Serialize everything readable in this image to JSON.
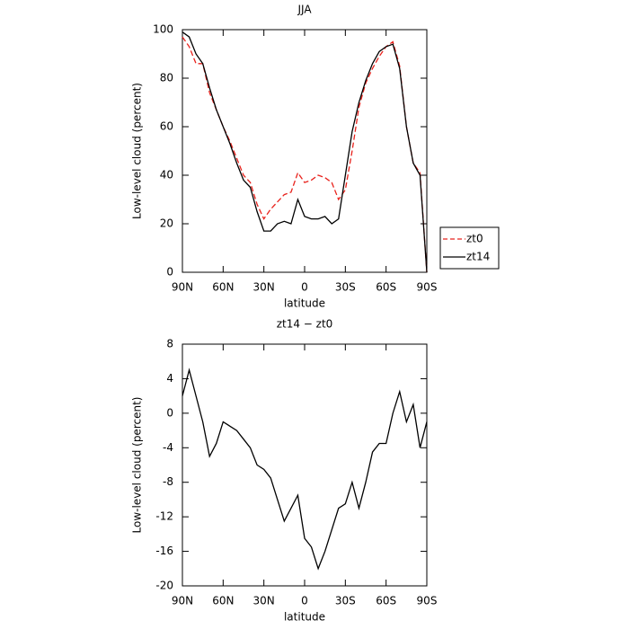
{
  "chart_data": [
    {
      "type": "line",
      "title": "JJA",
      "xlabel": "latitude",
      "ylabel": "Low-level cloud (percent)",
      "x": [
        90,
        85,
        80,
        75,
        70,
        65,
        60,
        55,
        50,
        45,
        40,
        35,
        30,
        25,
        20,
        15,
        10,
        5,
        0,
        -5,
        -10,
        -15,
        -20,
        -25,
        -30,
        -35,
        -40,
        -45,
        -50,
        -55,
        -60,
        -65,
        -70,
        -75,
        -80,
        -85,
        -90
      ],
      "xlim": [
        90,
        -90
      ],
      "xticks": [
        {
          "value": 90,
          "label": "90N"
        },
        {
          "value": 60,
          "label": "60N"
        },
        {
          "value": 30,
          "label": "30N"
        },
        0,
        {
          "value": -30,
          "label": "30S"
        },
        {
          "value": -60,
          "label": "60S"
        },
        {
          "value": -90,
          "label": "90S"
        }
      ],
      "ylim": [
        0,
        100
      ],
      "yticks": [
        0,
        20,
        40,
        60,
        80,
        100
      ],
      "legend": "right",
      "series": [
        {
          "name": "zt0",
          "color": "#e8231d",
          "style": "dashed",
          "values": [
            97,
            93,
            86,
            86,
            74,
            67,
            60,
            54,
            47,
            40,
            37,
            28,
            22,
            26,
            29,
            32,
            33,
            41,
            37,
            38,
            40,
            39,
            37,
            30,
            34,
            50,
            68,
            78,
            84,
            89,
            93,
            95,
            85,
            60,
            45,
            41,
            0
          ]
        },
        {
          "name": "zt14",
          "color": "#000000",
          "style": "solid",
          "values": [
            99,
            97,
            90,
            86,
            76,
            67,
            60,
            53,
            45,
            38,
            35,
            25,
            17,
            17,
            20,
            21,
            20,
            30,
            23,
            22,
            22,
            23,
            20,
            22,
            40,
            58,
            70,
            79,
            86,
            91,
            93,
            94,
            84,
            60,
            45,
            40,
            0
          ]
        }
      ]
    },
    {
      "type": "line",
      "title": "zt14 − zt0",
      "xlabel": "latitude",
      "ylabel": "Low-level cloud (percent)",
      "x": [
        90,
        85,
        80,
        75,
        70,
        65,
        60,
        55,
        50,
        45,
        40,
        35,
        30,
        25,
        20,
        15,
        10,
        5,
        0,
        -5,
        -10,
        -15,
        -20,
        -25,
        -30,
        -35,
        -40,
        -45,
        -50,
        -55,
        -60,
        -65,
        -70,
        -75,
        -80,
        -85,
        -90
      ],
      "xlim": [
        90,
        -90
      ],
      "xticks": [
        {
          "value": 90,
          "label": "90N"
        },
        {
          "value": 60,
          "label": "60N"
        },
        {
          "value": 30,
          "label": "30N"
        },
        0,
        {
          "value": -30,
          "label": "30S"
        },
        {
          "value": -60,
          "label": "60S"
        },
        {
          "value": -90,
          "label": "90S"
        }
      ],
      "ylim": [
        -20,
        8
      ],
      "yticks": [
        -20,
        -16,
        -12,
        -8,
        -4,
        0,
        4,
        8
      ],
      "color": "#000000",
      "values": [
        2,
        5,
        2,
        -1,
        -5,
        -3.5,
        -1,
        -1.5,
        -2,
        -3,
        -4,
        -6,
        -6.5,
        -7.5,
        -10,
        -12.5,
        -11,
        -9.5,
        -14.5,
        -15.5,
        -18,
        -16,
        -13.5,
        -11,
        -10.5,
        -8,
        -11,
        -8,
        -4.5,
        -3.5,
        -3.5,
        0,
        2.5,
        -1,
        1,
        -4,
        -1
      ]
    }
  ]
}
